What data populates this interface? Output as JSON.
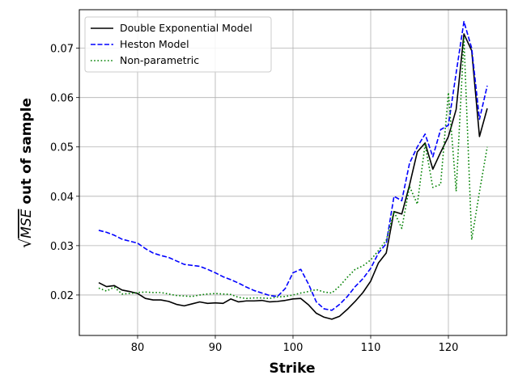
{
  "chart_data": {
    "type": "line",
    "xlabel": "Strike",
    "ylabel_sqrt": "√",
    "ylabel_math": "MSE",
    "ylabel_rest": " out of sample",
    "xlim": [
      72.5,
      127.5
    ],
    "ylim": [
      0.0118,
      0.0778
    ],
    "xticks": [
      80,
      90,
      100,
      110,
      120
    ],
    "yticks": [
      0.02,
      0.03,
      0.04,
      0.05,
      0.06,
      0.07
    ],
    "ytick_labels": [
      "0.02",
      "0.03",
      "0.04",
      "0.05",
      "0.06",
      "0.07"
    ],
    "grid": true,
    "legend_position": "top-left",
    "x": [
      75,
      76,
      77,
      78,
      79,
      80,
      81,
      82,
      83,
      84,
      85,
      86,
      87,
      88,
      89,
      90,
      91,
      92,
      93,
      94,
      95,
      96,
      97,
      98,
      99,
      100,
      101,
      102,
      103,
      104,
      105,
      106,
      107,
      108,
      109,
      110,
      111,
      112,
      113,
      114,
      115,
      116,
      117,
      118,
      119,
      120,
      121,
      122,
      123,
      124,
      125
    ],
    "series": [
      {
        "name": "Double Exponential Model",
        "color": "#000000",
        "dash": "solid",
        "values": [
          0.0225,
          0.0217,
          0.0219,
          0.021,
          0.0207,
          0.0203,
          0.0193,
          0.019,
          0.019,
          0.0187,
          0.0181,
          0.0178,
          0.0182,
          0.0186,
          0.0183,
          0.0184,
          0.0183,
          0.0192,
          0.0186,
          0.0188,
          0.0188,
          0.0189,
          0.0186,
          0.0187,
          0.0189,
          0.0192,
          0.0193,
          0.018,
          0.0163,
          0.0155,
          0.0151,
          0.0157,
          0.0171,
          0.0187,
          0.0205,
          0.0228,
          0.0265,
          0.0285,
          0.0369,
          0.0364,
          0.0423,
          0.049,
          0.0508,
          0.0455,
          0.0489,
          0.0521,
          0.0576,
          0.0729,
          0.0695,
          0.0521,
          0.0578
        ]
      },
      {
        "name": "Heston Model",
        "color": "#0000ff",
        "dash": "dashed",
        "values": [
          0.0331,
          0.0327,
          0.0321,
          0.0313,
          0.0309,
          0.0305,
          0.0294,
          0.0285,
          0.028,
          0.0276,
          0.0269,
          0.0262,
          0.026,
          0.0258,
          0.0252,
          0.0245,
          0.0237,
          0.0231,
          0.0224,
          0.0216,
          0.0209,
          0.0204,
          0.0199,
          0.0197,
          0.0213,
          0.0245,
          0.0252,
          0.0222,
          0.0186,
          0.0172,
          0.0169,
          0.0181,
          0.0197,
          0.0217,
          0.0233,
          0.0254,
          0.0285,
          0.0304,
          0.04,
          0.0391,
          0.0467,
          0.05,
          0.0526,
          0.048,
          0.0535,
          0.0544,
          0.065,
          0.0754,
          0.07,
          0.0556,
          0.0624
        ]
      },
      {
        "name": "Non-parametric",
        "color": "#008000",
        "dash": "dotted",
        "values": [
          0.0214,
          0.0208,
          0.0216,
          0.0202,
          0.0203,
          0.0205,
          0.0206,
          0.0205,
          0.0205,
          0.0202,
          0.0199,
          0.0198,
          0.0197,
          0.02,
          0.0202,
          0.0203,
          0.0202,
          0.0201,
          0.0195,
          0.0193,
          0.0194,
          0.0194,
          0.0193,
          0.0196,
          0.0197,
          0.02,
          0.0204,
          0.0207,
          0.0211,
          0.0206,
          0.0204,
          0.0218,
          0.0236,
          0.0252,
          0.0259,
          0.0271,
          0.029,
          0.0311,
          0.0369,
          0.0335,
          0.042,
          0.0384,
          0.0505,
          0.0418,
          0.0424,
          0.061,
          0.041,
          0.072,
          0.0312,
          0.0409,
          0.05
        ]
      }
    ]
  }
}
